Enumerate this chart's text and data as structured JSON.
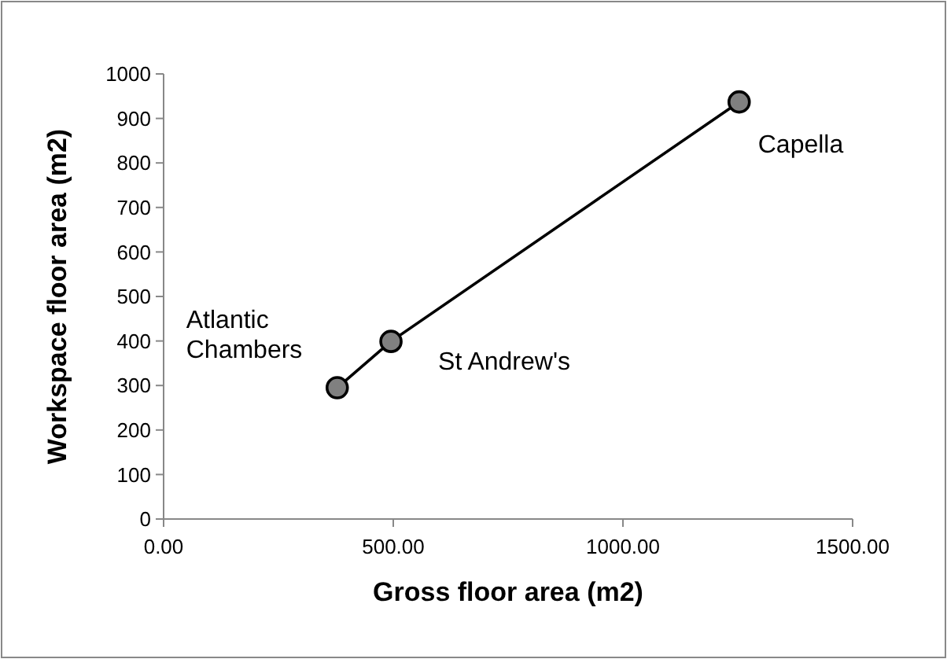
{
  "chart_data": {
    "type": "line",
    "xlabel": "Gross floor area (m2)",
    "ylabel": "Workspace floor area (m2)",
    "x": [
      378,
      495,
      1253
    ],
    "series": [
      {
        "color": "#000000",
        "values": [
          295,
          399,
          937
        ]
      }
    ],
    "marker": "circle",
    "line_style": "solid",
    "grid": false,
    "xlim": [
      0,
      1500
    ],
    "xticks": [
      {
        "value": 0,
        "label": "0.00"
      },
      {
        "value": 500,
        "label": "500.00"
      },
      {
        "value": 1000,
        "label": "1000.00"
      },
      {
        "value": 1500,
        "label": "1500.00"
      }
    ],
    "ylim": [
      0,
      1000
    ],
    "yticks": [
      0,
      100,
      200,
      300,
      400,
      500,
      600,
      700,
      800,
      900,
      1000
    ],
    "annotations": [
      {
        "text": "Atlantic Chambers",
        "x": 378,
        "y": 295
      },
      {
        "text": "St Andrew's",
        "x": 495,
        "y": 399
      },
      {
        "text": "Capella",
        "x": 1253,
        "y": 937
      }
    ]
  }
}
